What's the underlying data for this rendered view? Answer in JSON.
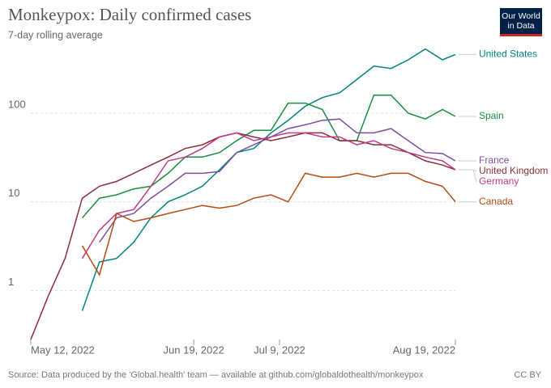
{
  "chart_data": {
    "type": "line",
    "title": "Monkeypox: Daily confirmed cases",
    "subtitle": "7-day rolling average",
    "logo": [
      "Our World",
      "in Data"
    ],
    "source": "Source: Data produced by the 'Global.health' team — available at github.com/globaldothealth/monkeypox",
    "license": "CC BY",
    "log_scale": true,
    "grid": true,
    "x": [
      "2022-05-12",
      "2022-05-16",
      "2022-05-20",
      "2022-05-24",
      "2022-05-28",
      "2022-06-01",
      "2022-06-05",
      "2022-06-09",
      "2022-06-13",
      "2022-06-17",
      "2022-06-21",
      "2022-06-25",
      "2022-06-29",
      "2022-07-03",
      "2022-07-07",
      "2022-07-11",
      "2022-07-15",
      "2022-07-19",
      "2022-07-23",
      "2022-07-27",
      "2022-07-31",
      "2022-08-04",
      "2022-08-08",
      "2022-08-12",
      "2022-08-16",
      "2022-08-19"
    ],
    "xlim": [
      "2022-05-12",
      "2022-08-19"
    ],
    "xticks": [
      {
        "value": "2022-05-12",
        "label": "May 12, 2022"
      },
      {
        "value": "2022-06-19",
        "label": "Jun 19, 2022"
      },
      {
        "value": "2022-07-09",
        "label": "Jul 9, 2022"
      },
      {
        "value": "2022-08-19",
        "label": "Aug 19, 2022"
      }
    ],
    "ylim": [
      0.28,
      560
    ],
    "yticks": [
      1,
      10,
      100
    ],
    "series": [
      {
        "name": "United States",
        "color": "#00847e",
        "values": [
          null,
          null,
          null,
          0.59,
          2.1,
          2.3,
          3.5,
          6.6,
          10,
          12,
          15,
          23,
          36,
          40,
          60,
          83,
          120,
          150,
          170,
          240,
          340,
          320,
          400,
          530,
          400,
          460
        ]
      },
      {
        "name": "Spain",
        "color": "#1a8d43",
        "values": [
          null,
          null,
          null,
          6.6,
          11,
          12,
          14,
          15,
          21,
          32,
          32,
          36,
          49,
          64,
          64,
          130,
          130,
          110,
          49,
          49,
          160,
          160,
          100,
          86,
          110,
          92
        ]
      },
      {
        "name": "France",
        "color": "#7d4ea0",
        "values": [
          null,
          null,
          null,
          null,
          3.5,
          6.6,
          7.4,
          11,
          15,
          21,
          21,
          22,
          36,
          44,
          54,
          67,
          74,
          83,
          86,
          60,
          60,
          67,
          49,
          36,
          35,
          29
        ]
      },
      {
        "name": "United Kingdom",
        "color": "#883039",
        "values": [
          0.28,
          0.85,
          2.3,
          11,
          15,
          17,
          21,
          26,
          32,
          40,
          44,
          54,
          60,
          54,
          49,
          54,
          60,
          60,
          49,
          49,
          44,
          44,
          36,
          29,
          26,
          23
        ]
      },
      {
        "name": "Germany",
        "color": "#c23b88",
        "values": [
          null,
          null,
          null,
          2.3,
          4.8,
          7.4,
          8.2,
          15,
          29,
          32,
          40,
          54,
          60,
          49,
          54,
          60,
          60,
          54,
          54,
          44,
          49,
          40,
          36,
          32,
          29,
          23
        ]
      },
      {
        "name": "Canada",
        "color": "#b54a12",
        "values": [
          null,
          null,
          null,
          3.2,
          1.5,
          7.4,
          6,
          6.6,
          7.4,
          8.2,
          9.1,
          8.5,
          9.1,
          11,
          12,
          10,
          21,
          19,
          19,
          21,
          19,
          21,
          21,
          17,
          15,
          10
        ]
      }
    ]
  }
}
